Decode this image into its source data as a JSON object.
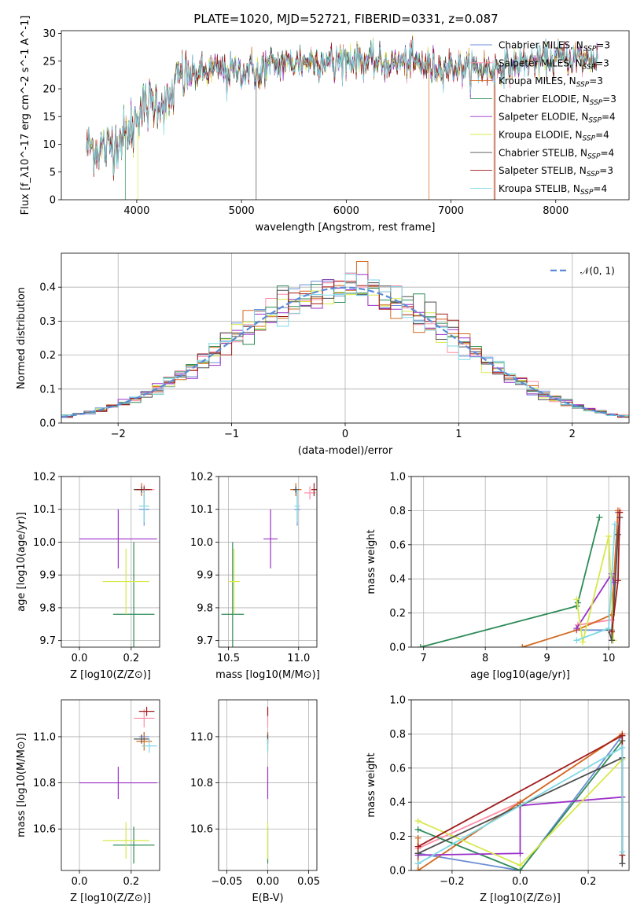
{
  "colors": {
    "Chabrier MILES": "#6d8fd6",
    "Salpeter MILES": "#ff8da8",
    "Kroupa MILES": "#d2691e",
    "Chabrier ELODIE": "#2e8b57",
    "Salpeter ELODIE": "#9b30c8",
    "Kroupa ELODIE": "#d7e84a",
    "Chabrier STELIB": "#4f4f4f",
    "Salpeter STELIB": "#a01c1c",
    "Kroupa STELIB": "#7fd8e6",
    "normal": "#5b8bd6"
  },
  "chart_data": [
    {
      "id": "spectrum",
      "type": "line",
      "title": "PLATE=1020, MJD=52721, FIBERID=0331, z=0.087",
      "xlabel": "wavelength [Angstrom, rest frame]",
      "ylabel": "Flux [f_λ10^-17 erg cm^-2 s^-1 A^-1]",
      "xlim": [
        3280,
        8700
      ],
      "ylim": [
        0,
        30.5
      ],
      "xticks": [
        "4000",
        "5000",
        "6000",
        "7000",
        "8000"
      ],
      "yticks": [
        "0",
        "5",
        "10",
        "15",
        "20",
        "25",
        "30"
      ],
      "grid": false,
      "legend_position": "top-right",
      "continuum": {
        "x": [
          3500,
          3700,
          3900,
          4000,
          4200,
          4300,
          4400,
          4600,
          4800,
          5000,
          5200,
          5400,
          5600,
          5800,
          6000,
          6200,
          6400,
          6600,
          6800,
          7000,
          7200,
          7400,
          7600,
          7800,
          8000,
          8200,
          8400
        ],
        "y": [
          10,
          9,
          12,
          16,
          18,
          17,
          22,
          23,
          23.5,
          23,
          24,
          24.5,
          25,
          25,
          25.5,
          25,
          24.5,
          25,
          24,
          24,
          23.5,
          23.5,
          24.5,
          25,
          25.5,
          25.5,
          25.5
        ]
      },
      "series": [
        {
          "name": "Chabrier MILES, N_SSP=3",
          "color_key": "Chabrier MILES"
        },
        {
          "name": "Salpeter MILES, N_SSP=3",
          "color_key": "Salpeter MILES"
        },
        {
          "name": "Kroupa MILES, N_SSP=3",
          "color_key": "Kroupa MILES"
        },
        {
          "name": "Chabrier ELODIE, N_SSP=3",
          "color_key": "Chabrier ELODIE"
        },
        {
          "name": "Salpeter ELODIE, N_SSP=4",
          "color_key": "Salpeter ELODIE"
        },
        {
          "name": "Kroupa ELODIE, N_SSP=4",
          "color_key": "Kroupa ELODIE"
        },
        {
          "name": "Chabrier STELIB, N_SSP=4",
          "color_key": "Chabrier STELIB"
        },
        {
          "name": "Salpeter STELIB, N_SSP=3",
          "color_key": "Salpeter STELIB"
        },
        {
          "name": "Kroupa STELIB, N_SSP=4",
          "color_key": "Kroupa STELIB"
        }
      ]
    },
    {
      "id": "residuals",
      "type": "step",
      "xlabel": "(data-model)/error",
      "ylabel": "Normed distribution",
      "xlim": [
        -2.5,
        2.5
      ],
      "ylim": [
        0,
        0.5
      ],
      "xticks": [
        "−2",
        "−1",
        "0",
        "1",
        "2"
      ],
      "yticks": [
        "0.0",
        "0.1",
        "0.2",
        "0.3",
        "0.4"
      ],
      "grid": true,
      "legend_position": "top-right",
      "normal_label": "𝒩(0, 1)",
      "bin_width": 0.1
    },
    {
      "id": "age_vs_Z",
      "type": "errorbar",
      "xlabel": "Z [log10(Z/Z⊙)]",
      "ylabel": "age  [log10(age/yr)]",
      "xlim": [
        -0.07,
        0.31
      ],
      "ylim": [
        9.68,
        10.2
      ],
      "xticks": [
        "0.0",
        "0.2"
      ],
      "yticks": [
        "9.7",
        "9.8",
        "9.9",
        "10.0",
        "10.1",
        "10.2"
      ],
      "grid": true,
      "points": [
        {
          "key": "Chabrier MILES",
          "x": 0.25,
          "y": 10.1,
          "xerr": 0.02,
          "yerr": 0.05
        },
        {
          "key": "Salpeter MILES",
          "x": 0.25,
          "y": 10.16,
          "xerr": 0.04,
          "yerr": 0.015
        },
        {
          "key": "Kroupa MILES",
          "x": 0.24,
          "y": 10.16,
          "xerr": 0.03,
          "yerr": 0.02
        },
        {
          "key": "Chabrier ELODIE",
          "x": 0.21,
          "y": 9.78,
          "xerr": 0.08,
          "yerr": 0.22
        },
        {
          "key": "Salpeter ELODIE",
          "x": 0.15,
          "y": 10.01,
          "xerr": 0.15,
          "yerr": 0.09
        },
        {
          "key": "Kroupa ELODIE",
          "x": 0.18,
          "y": 9.88,
          "xerr": 0.09,
          "yerr": 0.1
        },
        {
          "key": "Chabrier STELIB",
          "x": 0.24,
          "y": 10.16,
          "xerr": 0.03,
          "yerr": 0.01
        },
        {
          "key": "Salpeter STELIB",
          "x": 0.25,
          "y": 10.16,
          "xerr": 0.03,
          "yerr": 0.01
        },
        {
          "key": "Kroupa STELIB",
          "x": 0.25,
          "y": 10.11,
          "xerr": 0.02,
          "yerr": 0.05
        }
      ]
    },
    {
      "id": "age_vs_mass",
      "type": "errorbar",
      "xlabel": "mass [log10(M/M⊙)]",
      "ylabel": "",
      "xlim": [
        10.43,
        11.13
      ],
      "ylim": [
        9.68,
        10.2
      ],
      "xticks": [
        "10.5",
        "11.0"
      ],
      "yticks": [
        "9.7",
        "9.8",
        "9.9",
        "10.0",
        "10.1",
        "10.2"
      ],
      "grid": true,
      "points": [
        {
          "key": "Chabrier MILES",
          "x": 10.99,
          "y": 10.1,
          "xerr": 0.02,
          "yerr": 0.05
        },
        {
          "key": "Salpeter MILES",
          "x": 11.08,
          "y": 10.15,
          "xerr": 0.04,
          "yerr": 0.02
        },
        {
          "key": "Kroupa MILES",
          "x": 10.98,
          "y": 10.16,
          "xerr": 0.04,
          "yerr": 0.02
        },
        {
          "key": "Chabrier ELODIE",
          "x": 10.53,
          "y": 9.78,
          "xerr": 0.08,
          "yerr": 0.22
        },
        {
          "key": "Salpeter ELODIE",
          "x": 10.8,
          "y": 10.01,
          "xerr": 0.05,
          "yerr": 0.09
        },
        {
          "key": "Kroupa ELODIE",
          "x": 10.54,
          "y": 9.88,
          "xerr": 0.04,
          "yerr": 0.1
        },
        {
          "key": "Chabrier STELIB",
          "x": 10.98,
          "y": 10.16,
          "xerr": 0.02,
          "yerr": 0.01
        },
        {
          "key": "Salpeter STELIB",
          "x": 11.11,
          "y": 10.16,
          "xerr": 0.02,
          "yerr": 0.02
        },
        {
          "key": "Kroupa STELIB",
          "x": 10.99,
          "y": 10.11,
          "xerr": 0.02,
          "yerr": 0.05
        }
      ]
    },
    {
      "id": "weight_vs_age",
      "type": "line",
      "xlabel": "age  [log10(age/yr)]",
      "ylabel": "mass weight",
      "xlim": [
        6.8,
        10.33
      ],
      "ylim": [
        0,
        1
      ],
      "xticks": [
        "7",
        "8",
        "9",
        "10"
      ],
      "yticks": [
        "0.0",
        "0.2",
        "0.4",
        "0.6",
        "0.8",
        "1.0"
      ],
      "grid": true,
      "series": [
        {
          "key": "Chabrier MILES",
          "points": [
            [
              9.48,
              0.1
            ],
            [
              10.05,
              0.1
            ],
            [
              10.15,
              0.79
            ]
          ]
        },
        {
          "key": "Salpeter MILES",
          "points": [
            [
              9.5,
              0.13
            ],
            [
              10.05,
              0.16
            ],
            [
              10.18,
              0.8
            ]
          ]
        },
        {
          "key": "Kroupa MILES",
          "points": [
            [
              8.6,
              0.0
            ],
            [
              9.48,
              0.1
            ],
            [
              10.05,
              0.19
            ],
            [
              10.15,
              0.8
            ]
          ]
        },
        {
          "key": "Chabrier ELODIE",
          "points": [
            [
              6.95,
              0.0
            ],
            [
              9.48,
              0.24
            ],
            [
              9.5,
              0.26
            ],
            [
              9.85,
              0.76
            ]
          ]
        },
        {
          "key": "Salpeter ELODIE",
          "points": [
            [
              9.48,
              0.11
            ],
            [
              10.05,
              0.43
            ],
            [
              10.08,
              0.38
            ]
          ]
        },
        {
          "key": "Kroupa ELODIE",
          "points": [
            [
              9.48,
              0.28
            ],
            [
              9.58,
              0.03
            ],
            [
              10.0,
              0.65
            ],
            [
              10.08,
              0.04
            ]
          ]
        },
        {
          "key": "Chabrier STELIB",
          "points": [
            [
              10.0,
              0.1
            ],
            [
              10.05,
              0.04
            ],
            [
              10.15,
              0.66
            ],
            [
              10.18,
              0.76
            ]
          ]
        },
        {
          "key": "Salpeter STELIB",
          "points": [
            [
              10.05,
              0.09
            ],
            [
              10.15,
              0.39
            ],
            [
              10.18,
              0.79
            ]
          ]
        },
        {
          "key": "Kroupa STELIB",
          "points": [
            [
              9.48,
              0.04
            ],
            [
              10.0,
              0.11
            ],
            [
              10.1,
              0.72
            ]
          ]
        }
      ]
    },
    {
      "id": "mass_vs_Z",
      "type": "errorbar",
      "xlabel": "Z [log10(Z/Z⊙)]",
      "ylabel": "mass [log10(M/M⊙)]",
      "xlim": [
        -0.07,
        0.31
      ],
      "ylim": [
        10.42,
        11.16
      ],
      "xticks": [
        "0.0",
        "0.2"
      ],
      "yticks": [
        "10.6",
        "10.8",
        "11.0"
      ],
      "grid": true,
      "points": [
        {
          "key": "Chabrier MILES",
          "x": 0.25,
          "y": 11.0,
          "xerr": 0.02,
          "yerr": 0.02
        },
        {
          "key": "Salpeter MILES",
          "x": 0.25,
          "y": 11.08,
          "xerr": 0.04,
          "yerr": 0.04
        },
        {
          "key": "Kroupa MILES",
          "x": 0.25,
          "y": 10.98,
          "xerr": 0.03,
          "yerr": 0.04
        },
        {
          "key": "Chabrier ELODIE",
          "x": 0.21,
          "y": 10.53,
          "xerr": 0.08,
          "yerr": 0.08
        },
        {
          "key": "Salpeter ELODIE",
          "x": 0.15,
          "y": 10.8,
          "xerr": 0.15,
          "yerr": 0.07
        },
        {
          "key": "Kroupa ELODIE",
          "x": 0.18,
          "y": 10.55,
          "xerr": 0.09,
          "yerr": 0.08
        },
        {
          "key": "Chabrier STELIB",
          "x": 0.24,
          "y": 10.99,
          "xerr": 0.03,
          "yerr": 0.02
        },
        {
          "key": "Salpeter STELIB",
          "x": 0.26,
          "y": 11.11,
          "xerr": 0.03,
          "yerr": 0.02
        },
        {
          "key": "Kroupa STELIB",
          "x": 0.27,
          "y": 10.96,
          "xerr": 0.03,
          "yerr": 0.03
        }
      ]
    },
    {
      "id": "mass_vs_ebv",
      "type": "errorbar",
      "xlabel": "E(B-V)",
      "ylabel": "",
      "xlim": [
        -0.06,
        0.06
      ],
      "ylim": [
        10.42,
        11.16
      ],
      "xticks": [
        "−0.05",
        "0.00",
        "0.05"
      ],
      "yticks": [
        "10.6",
        "10.8",
        "11.0"
      ],
      "grid": true,
      "points": [
        {
          "key": "Chabrier MILES",
          "x": 0,
          "y": 11.0,
          "xerr": 0,
          "yerr": 0.02
        },
        {
          "key": "Salpeter MILES",
          "x": 0,
          "y": 11.08,
          "xerr": 0,
          "yerr": 0.04
        },
        {
          "key": "Kroupa MILES",
          "x": 0,
          "y": 10.98,
          "xerr": 0,
          "yerr": 0.04
        },
        {
          "key": "Chabrier ELODIE",
          "x": 0,
          "y": 10.53,
          "xerr": 0,
          "yerr": 0.08
        },
        {
          "key": "Salpeter ELODIE",
          "x": 0,
          "y": 10.8,
          "xerr": 0,
          "yerr": 0.07
        },
        {
          "key": "Kroupa ELODIE",
          "x": 0,
          "y": 10.55,
          "xerr": 0,
          "yerr": 0.08
        },
        {
          "key": "Chabrier STELIB",
          "x": 0,
          "y": 10.99,
          "xerr": 0,
          "yerr": 0.02
        },
        {
          "key": "Salpeter STELIB",
          "x": 0,
          "y": 11.11,
          "xerr": 0,
          "yerr": 0.02
        },
        {
          "key": "Kroupa STELIB",
          "x": 0,
          "y": 10.96,
          "xerr": 0,
          "yerr": 0.03
        }
      ]
    },
    {
      "id": "weight_vs_Z",
      "type": "line",
      "xlabel": "Z [log10(Z/Z⊙)]",
      "ylabel": "mass weight",
      "xlim": [
        -0.32,
        0.32
      ],
      "ylim": [
        0,
        1
      ],
      "xticks": [
        "−0.2",
        "0.0",
        "0.2"
      ],
      "yticks": [
        "0.0",
        "0.2",
        "0.4",
        "0.6",
        "0.8",
        "1.0"
      ],
      "grid": true,
      "series": [
        {
          "key": "Chabrier MILES",
          "points": [
            [
              -0.3,
              0.1
            ],
            [
              0.0,
              0.0
            ],
            [
              0.3,
              0.79
            ]
          ]
        },
        {
          "key": "Salpeter MILES",
          "points": [
            [
              -0.3,
              0.13
            ],
            [
              0.0,
              0.4
            ],
            [
              0.3,
              0.8
            ]
          ]
        },
        {
          "key": "Kroupa MILES",
          "points": [
            [
              -0.3,
              0.19
            ],
            [
              -0.3,
              0.0
            ],
            [
              0.0,
              0.4
            ],
            [
              0.3,
              0.8
            ]
          ]
        },
        {
          "key": "Chabrier ELODIE",
          "points": [
            [
              -0.3,
              0.24
            ],
            [
              0.0,
              0.0
            ],
            [
              0.3,
              0.76
            ]
          ]
        },
        {
          "key": "Salpeter ELODIE",
          "points": [
            [
              -0.3,
              0.09
            ],
            [
              0.0,
              0.1
            ],
            [
              0.0,
              0.38
            ],
            [
              0.3,
              0.43
            ]
          ]
        },
        {
          "key": "Kroupa ELODIE",
          "points": [
            [
              -0.3,
              0.29
            ],
            [
              0.0,
              0.03
            ],
            [
              0.3,
              0.65
            ]
          ]
        },
        {
          "key": "Chabrier STELIB",
          "points": [
            [
              -0.3,
              0.1
            ],
            [
              0.0,
              0.38
            ],
            [
              0.3,
              0.66
            ],
            [
              0.3,
              0.04
            ]
          ]
        },
        {
          "key": "Salpeter STELIB",
          "points": [
            [
              -0.3,
              0.14
            ],
            [
              0.3,
              0.79
            ],
            [
              0.3,
              0.09
            ]
          ]
        },
        {
          "key": "Kroupa STELIB",
          "points": [
            [
              -0.3,
              0.04
            ],
            [
              0.3,
              0.72
            ],
            [
              0.3,
              0.11
            ]
          ]
        }
      ]
    }
  ]
}
